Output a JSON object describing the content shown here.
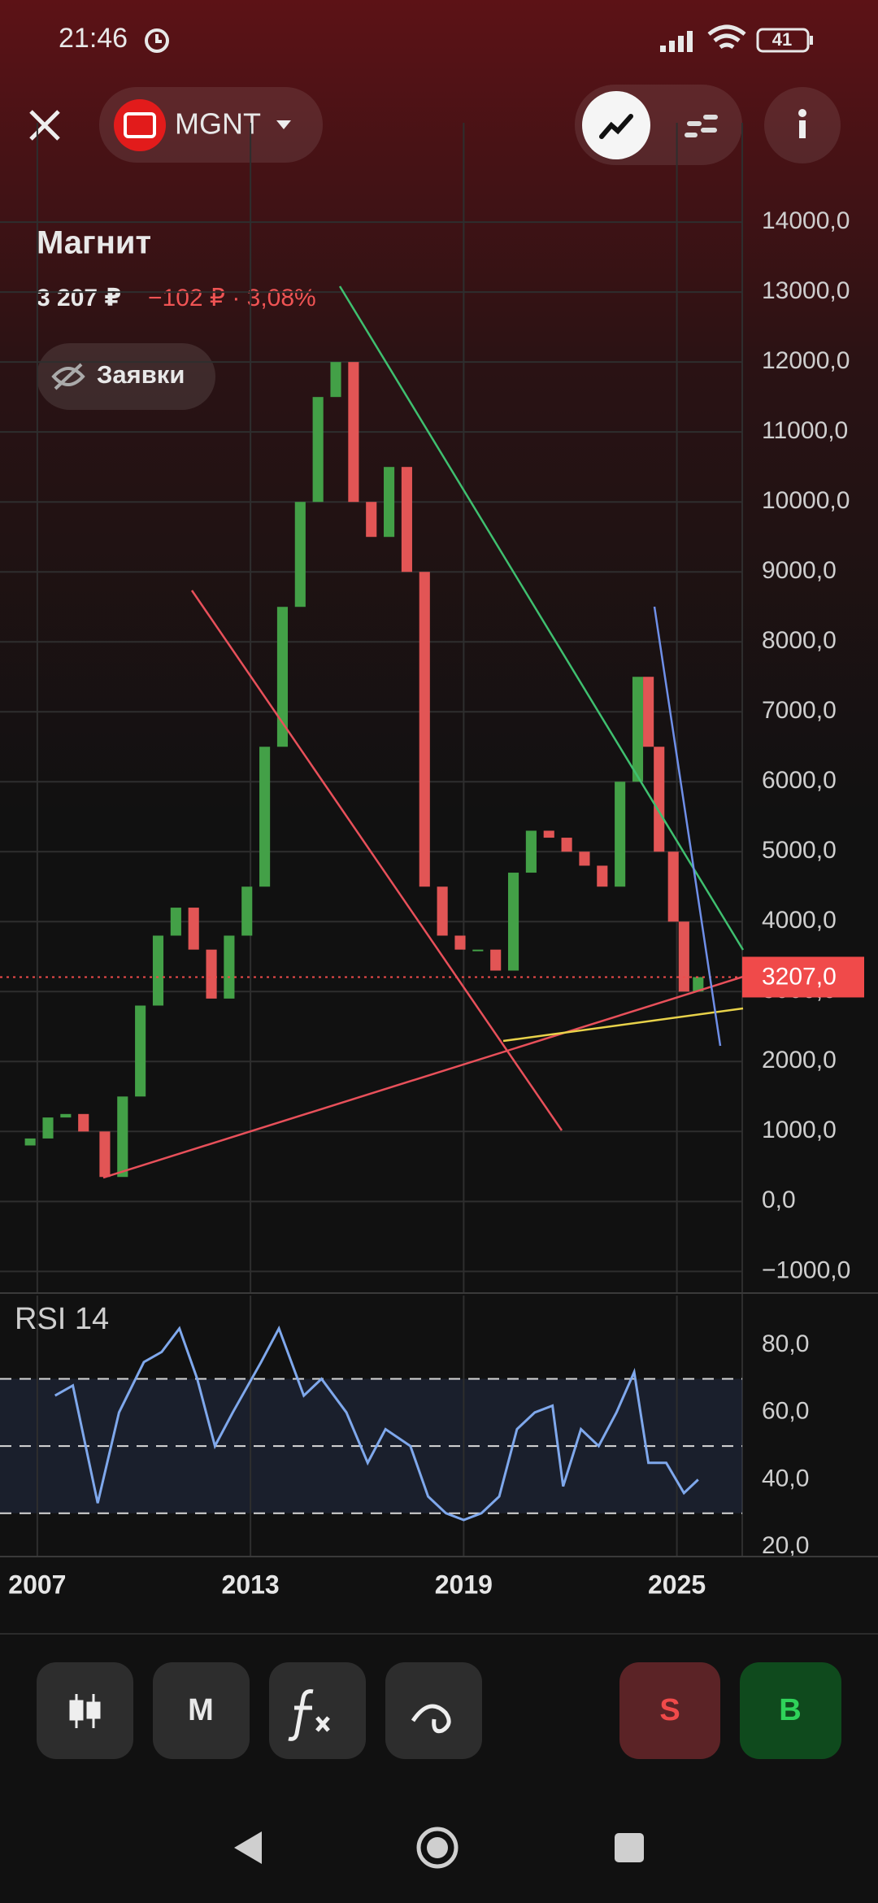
{
  "status_bar": {
    "time": "21:46",
    "battery": "41"
  },
  "header": {
    "ticker": "MGNT"
  },
  "instrument": {
    "name": "Магнит",
    "price": "3 207 ₽",
    "change": "−102 ₽ · 3,08%",
    "orders_button": "Заявки"
  },
  "chart_data": [
    {
      "type": "candlestick",
      "up_color": "#43a047",
      "down_color": "#e25555",
      "x": [
        2006.8,
        2007.3,
        2007.8,
        2008.3,
        2008.9,
        2009.4,
        2009.9,
        2010.4,
        2010.9,
        2011.4,
        2011.9,
        2012.4,
        2012.9,
        2013.4,
        2013.9,
        2014.4,
        2014.9,
        2015.4,
        2015.9,
        2016.4,
        2016.9,
        2017.4,
        2017.9,
        2018.4,
        2018.9,
        2019.4,
        2019.9,
        2020.4,
        2020.9,
        2021.4,
        2021.9,
        2022.4,
        2022.9,
        2023.4,
        2023.9,
        2024.2,
        2024.5,
        2024.9,
        2025.2,
        2025.6
      ],
      "open": [
        800,
        900,
        1200,
        1250,
        1000,
        350,
        1500,
        2800,
        3800,
        4200,
        3600,
        2900,
        3800,
        4500,
        6500,
        8500,
        10000,
        11500,
        12000,
        10000,
        9500,
        10500,
        9000,
        4500,
        3800,
        3600,
        3600,
        3300,
        4700,
        5300,
        5200,
        5000,
        4800,
        4500,
        6000,
        7500,
        6500,
        5000,
        4000,
        3000
      ],
      "close": [
        900,
        1200,
        1250,
        1000,
        350,
        1500,
        2800,
        3800,
        4200,
        3600,
        2900,
        3800,
        4500,
        6500,
        8500,
        10000,
        11500,
        12000,
        10000,
        9500,
        10500,
        9000,
        4500,
        3800,
        3600,
        3600,
        3300,
        4700,
        5300,
        5200,
        5000,
        4800,
        4500,
        6000,
        7500,
        6500,
        5000,
        4000,
        3000,
        3207
      ],
      "xlim": [
        2005.95,
        2026.84
      ],
      "xticks": [
        2007,
        2013,
        2019,
        2025
      ],
      "ylim": [
        -1310,
        14490
      ],
      "yticks": [
        {
          "value": 14000,
          "label": "14000,0"
        },
        {
          "value": 13000,
          "label": "13000,0"
        },
        {
          "value": 12000,
          "label": "12000,0"
        },
        {
          "value": 11000,
          "label": "11000,0"
        },
        {
          "value": 10000,
          "label": "10000,0"
        },
        {
          "value": 9000,
          "label": "9000,0"
        },
        {
          "value": 8000,
          "label": "8000,0"
        },
        {
          "value": 7000,
          "label": "7000,0"
        },
        {
          "value": 6000,
          "label": "6000,0"
        },
        {
          "value": 5000,
          "label": "5000,0"
        },
        {
          "value": 4000,
          "label": "4000,0"
        },
        {
          "value": 3000,
          "label": "3000,0"
        },
        {
          "value": 2000,
          "label": "2000,0"
        },
        {
          "value": 1000,
          "label": "1000,0"
        },
        {
          "value": 0,
          "label": "0,0"
        },
        {
          "value": -1000,
          "label": "−1000,0"
        }
      ],
      "last_price": {
        "value": 3207,
        "label": "3207,0"
      },
      "last_price_color": "#f04a4a",
      "grid": true
    },
    {
      "type": "line",
      "title": "RSI 14",
      "color": "#7fa8ec",
      "x": [
        2007.5,
        2008.0,
        2008.7,
        2009.3,
        2010.0,
        2010.5,
        2011.0,
        2011.5,
        2012.0,
        2012.5,
        2013.3,
        2013.8,
        2014.5,
        2015.0,
        2015.7,
        2016.3,
        2016.8,
        2017.5,
        2018.0,
        2018.5,
        2019.0,
        2019.5,
        2020.0,
        2020.5,
        2021.0,
        2021.5,
        2021.8,
        2022.3,
        2022.8,
        2023.3,
        2023.8,
        2024.2,
        2024.7,
        2025.2,
        2025.6
      ],
      "values": [
        65,
        68,
        33,
        60,
        75,
        78,
        85,
        70,
        50,
        60,
        75,
        85,
        65,
        70,
        60,
        45,
        55,
        50,
        35,
        30,
        28,
        30,
        35,
        55,
        60,
        62,
        38,
        55,
        50,
        60,
        72,
        45,
        45,
        36,
        40
      ],
      "levels": [
        30,
        50,
        70
      ],
      "xlim": [
        2005.95,
        2026.84
      ],
      "xticks": [
        2007,
        2013,
        2019,
        2025
      ],
      "ylim": [
        17.1,
        94.8
      ],
      "yticks": [
        {
          "value": 80,
          "label": "80,0"
        },
        {
          "value": 60,
          "label": "60,0"
        },
        {
          "value": 40,
          "label": "40,0"
        },
        {
          "value": 20,
          "label": "20,0"
        }
      ]
    }
  ],
  "toolbar": {
    "interval": "M",
    "sell": "S",
    "buy": "B"
  }
}
